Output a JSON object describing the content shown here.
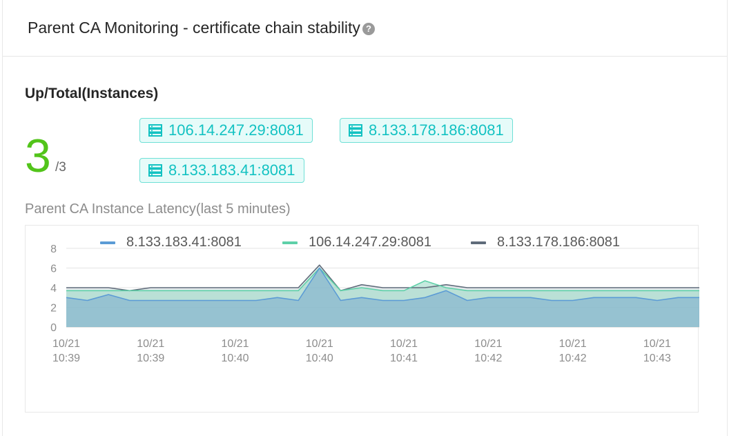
{
  "header": {
    "title": "Parent CA Monitoring - certificate chain stability",
    "help_icon": "question-circle-icon",
    "help_glyph": "?"
  },
  "instances": {
    "section_title": "Up/Total(Instances)",
    "up": "3",
    "total": "/3",
    "tags": [
      {
        "label": "106.14.247.29:8081",
        "icon": "server-icon"
      },
      {
        "label": "8.133.178.186:8081",
        "icon": "server-icon"
      },
      {
        "label": "8.133.183.41:8081",
        "icon": "server-icon"
      }
    ]
  },
  "latency": {
    "title": "Parent CA Instance Latency(last 5 minutes)"
  },
  "colors": {
    "accent": "#13c2c2",
    "up_green": "#52c41a",
    "series_blue": "#5b9bd5",
    "series_green": "#5ed0a8",
    "series_gray": "#5f6b7a"
  },
  "chart_data": {
    "type": "area",
    "x": [
      "10:39:00",
      "10:39:08",
      "10:39:16",
      "10:39:24",
      "10:39:32",
      "10:39:40",
      "10:39:48",
      "10:39:56",
      "10:40:04",
      "10:40:12",
      "10:40:20",
      "10:40:28",
      "10:40:36",
      "10:40:44",
      "10:40:52",
      "10:41:00",
      "10:41:08",
      "10:41:16",
      "10:41:24",
      "10:41:32",
      "10:41:40",
      "10:41:48",
      "10:41:56",
      "10:42:04",
      "10:42:12",
      "10:42:20",
      "10:42:28",
      "10:42:36",
      "10:42:44",
      "10:42:52",
      "10:43:00"
    ],
    "x_tick_labels": [
      {
        "date": "10/21",
        "time": "10:39"
      },
      {
        "date": "10/21",
        "time": "10:39"
      },
      {
        "date": "10/21",
        "time": "10:40"
      },
      {
        "date": "10/21",
        "time": "10:40"
      },
      {
        "date": "10/21",
        "time": "10:41"
      },
      {
        "date": "10/21",
        "time": "10:42"
      },
      {
        "date": "10/21",
        "time": "10:42"
      },
      {
        "date": "10/21",
        "time": "10:43"
      }
    ],
    "x_tick_every": 4,
    "ylim": [
      0,
      8
    ],
    "y_ticks": [
      0,
      2,
      4,
      6,
      8
    ],
    "grid": true,
    "legend_position": "top",
    "series": [
      {
        "name": "8.133.183.41:8081",
        "color": "#5b9bd5",
        "values": [
          3.0,
          2.7,
          3.3,
          2.7,
          2.7,
          2.7,
          2.7,
          2.7,
          2.7,
          2.7,
          3.0,
          2.7,
          6.0,
          2.7,
          3.0,
          2.7,
          2.7,
          3.0,
          3.7,
          2.7,
          3.0,
          3.0,
          3.0,
          2.7,
          2.7,
          3.0,
          3.0,
          3.0,
          2.7,
          3.0,
          3.0
        ]
      },
      {
        "name": "106.14.247.29:8081",
        "color": "#5ed0a8",
        "values": [
          3.7,
          3.7,
          3.7,
          3.7,
          3.7,
          3.7,
          3.7,
          3.7,
          3.7,
          3.7,
          3.7,
          3.7,
          6.0,
          3.7,
          4.0,
          3.7,
          3.7,
          4.7,
          4.0,
          3.7,
          3.7,
          3.7,
          3.7,
          3.7,
          3.7,
          3.7,
          3.7,
          3.7,
          3.7,
          3.7,
          3.7
        ]
      },
      {
        "name": "8.133.178.186:8081",
        "color": "#5f6b7a",
        "values": [
          4.0,
          4.0,
          4.0,
          3.7,
          4.0,
          4.0,
          4.0,
          4.0,
          4.0,
          4.0,
          4.0,
          4.0,
          6.3,
          3.7,
          4.3,
          4.0,
          4.0,
          4.0,
          4.3,
          4.0,
          4.0,
          4.0,
          4.0,
          4.0,
          4.0,
          4.0,
          4.0,
          4.0,
          4.0,
          4.0,
          4.0
        ]
      }
    ]
  }
}
